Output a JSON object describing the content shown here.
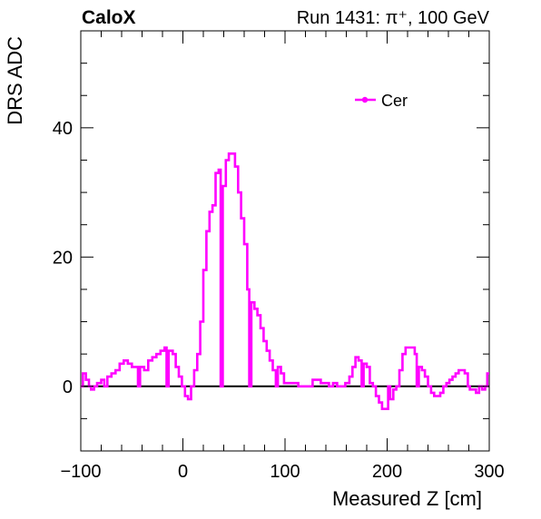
{
  "header": {
    "left": "CaloX",
    "right": "Run 1431:   π⁺, 100 GeV"
  },
  "colors": {
    "series": "#ff00ff",
    "axis": "#000000",
    "zero_line": "#000000"
  },
  "chart_data": {
    "type": "line",
    "xlabel": "Measured Z [cm]",
    "ylabel": "DRS ADC",
    "xlim": [
      -100,
      300
    ],
    "ylim": [
      -10,
      55
    ],
    "x_ticks": [
      -100,
      0,
      100,
      200,
      300
    ],
    "x_tick_labels": [
      "−100",
      "0",
      "100",
      "200",
      "300"
    ],
    "y_ticks": [
      0,
      20,
      40
    ],
    "y_tick_labels": [
      "0",
      "20",
      "40"
    ],
    "zero_line": true,
    "legend": "top-right",
    "series": [
      {
        "name": "Cer",
        "style": "step",
        "points": [
          [
            -100,
            0
          ],
          [
            -98,
            2
          ],
          [
            -95,
            1
          ],
          [
            -92,
            0
          ],
          [
            -90,
            -0.5
          ],
          [
            -87,
            0
          ],
          [
            -84,
            0.5
          ],
          [
            -80,
            1
          ],
          [
            -77,
            0
          ],
          [
            -74,
            1.5
          ],
          [
            -70,
            2
          ],
          [
            -66,
            2.5
          ],
          [
            -62,
            3.5
          ],
          [
            -58,
            4
          ],
          [
            -54,
            3.5
          ],
          [
            -50,
            3
          ],
          [
            -46,
            3
          ],
          [
            -44,
            0
          ],
          [
            -42,
            3
          ],
          [
            -38,
            2.5
          ],
          [
            -34,
            4
          ],
          [
            -30,
            4.5
          ],
          [
            -26,
            5
          ],
          [
            -22,
            5.5
          ],
          [
            -18,
            6
          ],
          [
            -16,
            0
          ],
          [
            -14,
            5.5
          ],
          [
            -10,
            5
          ],
          [
            -7,
            3
          ],
          [
            -4,
            1.5
          ],
          [
            -1,
            0
          ],
          [
            2,
            -1.5
          ],
          [
            5,
            -2
          ],
          [
            8,
            0
          ],
          [
            11,
            2.5
          ],
          [
            14,
            5
          ],
          [
            17,
            10
          ],
          [
            20,
            18
          ],
          [
            23,
            24
          ],
          [
            26,
            27
          ],
          [
            29,
            28
          ],
          [
            32,
            33
          ],
          [
            35,
            33.5
          ],
          [
            37,
            0
          ],
          [
            39,
            31
          ],
          [
            42,
            35
          ],
          [
            45,
            36
          ],
          [
            48,
            36
          ],
          [
            51,
            34
          ],
          [
            54,
            30
          ],
          [
            57,
            26
          ],
          [
            60,
            22
          ],
          [
            63,
            15
          ],
          [
            65,
            0
          ],
          [
            67,
            13
          ],
          [
            70,
            12
          ],
          [
            73,
            11
          ],
          [
            76,
            9
          ],
          [
            79,
            7
          ],
          [
            82,
            5.5
          ],
          [
            85,
            4
          ],
          [
            88,
            2.5
          ],
          [
            91,
            0
          ],
          [
            93,
            3
          ],
          [
            96,
            2
          ],
          [
            99,
            0.5
          ],
          [
            103,
            0.5
          ],
          [
            108,
            0.5
          ],
          [
            113,
            0
          ],
          [
            118,
            0
          ],
          [
            123,
            0
          ],
          [
            127,
            1
          ],
          [
            131,
            1
          ],
          [
            135,
            0.5
          ],
          [
            139,
            0.5
          ],
          [
            143,
            0
          ],
          [
            147,
            0.5
          ],
          [
            151,
            0
          ],
          [
            155,
            0
          ],
          [
            159,
            0.5
          ],
          [
            163,
            1.5
          ],
          [
            166,
            3
          ],
          [
            169,
            4.5
          ],
          [
            172,
            4
          ],
          [
            175,
            0
          ],
          [
            177,
            3.5
          ],
          [
            180,
            3
          ],
          [
            183,
            0.5
          ],
          [
            186,
            0
          ],
          [
            189,
            -1.5
          ],
          [
            192,
            -2.5
          ],
          [
            195,
            -3.5
          ],
          [
            198,
            -3.5
          ],
          [
            201,
            0
          ],
          [
            203,
            -2
          ],
          [
            206,
            -0.5
          ],
          [
            209,
            0
          ],
          [
            212,
            2.5
          ],
          [
            215,
            5
          ],
          [
            218,
            6
          ],
          [
            221,
            6
          ],
          [
            224,
            6
          ],
          [
            227,
            5
          ],
          [
            229,
            0
          ],
          [
            231,
            3
          ],
          [
            234,
            2.5
          ],
          [
            237,
            1.5
          ],
          [
            240,
            0
          ],
          [
            243,
            -1
          ],
          [
            246,
            -1.5
          ],
          [
            249,
            -1.5
          ],
          [
            252,
            -1
          ],
          [
            255,
            0
          ],
          [
            258,
            0.5
          ],
          [
            261,
            1
          ],
          [
            264,
            1.5
          ],
          [
            267,
            2
          ],
          [
            270,
            2.5
          ],
          [
            273,
            2.5
          ],
          [
            276,
            2
          ],
          [
            279,
            0
          ],
          [
            281,
            -0.5
          ],
          [
            284,
            -0.5
          ],
          [
            287,
            -1
          ],
          [
            290,
            0
          ],
          [
            293,
            -0.5
          ],
          [
            296,
            0
          ],
          [
            298,
            2
          ],
          [
            300,
            2
          ]
        ]
      }
    ]
  }
}
